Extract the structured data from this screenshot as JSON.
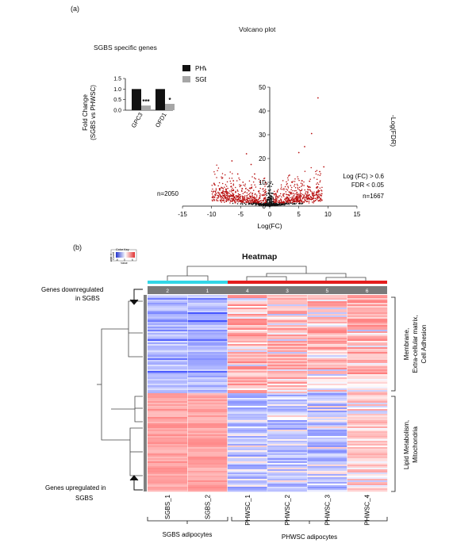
{
  "panel_a_label": "(a)",
  "panel_b_label": "(b)",
  "colors": {
    "dark_bar": "#111111",
    "light_bar": "#a6a6a6",
    "up_point": "#b80f0f",
    "base_point": "#111111",
    "heat_blue": "#2233cc",
    "heat_red": "#e03030",
    "cyan_bar": "#33d6e6",
    "red_bar": "#e41e1e"
  },
  "chart_data": [
    {
      "type": "bar",
      "title": "SGBS specific genes",
      "ylabel": "Fold Change (SGBS vs PHWSC)",
      "ylabel_lines": [
        "Fold Change",
        "(SGBS vs PHWSC)"
      ],
      "ylim": [
        0,
        1.5
      ],
      "yticks": [
        "0.0",
        "0.5",
        "1.0",
        "1.5"
      ],
      "categories": [
        "GPC3",
        "OFD1"
      ],
      "series": [
        {
          "name": "PHWSC",
          "values": [
            1.0,
            1.0
          ]
        },
        {
          "name": "SGBS",
          "values": [
            0.22,
            0.3
          ]
        }
      ],
      "significance": [
        "***",
        "*"
      ]
    },
    {
      "type": "scatter",
      "title": "Volcano plot",
      "xlabel": "Log(FC)",
      "ylabel": "-Log(FDR)",
      "xlim": [
        -15,
        15
      ],
      "ylim": [
        0,
        50
      ],
      "xticks": [
        "-15",
        "-10",
        "-5",
        "0",
        "5",
        "10",
        "15"
      ],
      "yticks": [
        "0",
        "10",
        "20",
        "30",
        "40",
        "50"
      ],
      "annotations": [
        "Log (FC) > 0.6",
        "FDR < 0.05"
      ],
      "down_count": "n=2050",
      "up_count": "n=1667"
    },
    {
      "type": "heatmap",
      "title": "Heatmap",
      "color_key": {
        "title": "Color Key",
        "ylabel": "Count",
        "xlabel": "Value",
        "ticks": [
          "-6",
          "0",
          "6"
        ],
        "count_ticks": [
          "0",
          "2000"
        ]
      },
      "column_numbers": [
        "2",
        "1",
        "4",
        "3",
        "5",
        "6"
      ],
      "columns": [
        "SGBS_1",
        "SGBS_2",
        "PHWSC_1",
        "PHWSC_2",
        "PHWSC_3",
        "PHWSC_4"
      ],
      "row_labels": [
        "Genes downregulated in SGBS",
        "Genes upregulated in SGBS"
      ],
      "right_labels": [
        "Membrane, Extra-cellular matrix, Cell Adhesion",
        "Lipid Metabolism, Mitochondria"
      ],
      "group_labels": [
        "SGBS adipocytes",
        "PHWSC adipocytes"
      ]
    }
  ],
  "row_label_lines": {
    "down": [
      "Genes downregulated",
      "in SGBS"
    ],
    "up": [
      "Genes upregulated in",
      "SGBS"
    ]
  },
  "right_label_lines": {
    "top": [
      "Membrane,",
      "Extra-cellular matrix,",
      "Cell Adhesion"
    ],
    "bottom": [
      "Lipid Metabolism,",
      "Mitochondria"
    ]
  }
}
